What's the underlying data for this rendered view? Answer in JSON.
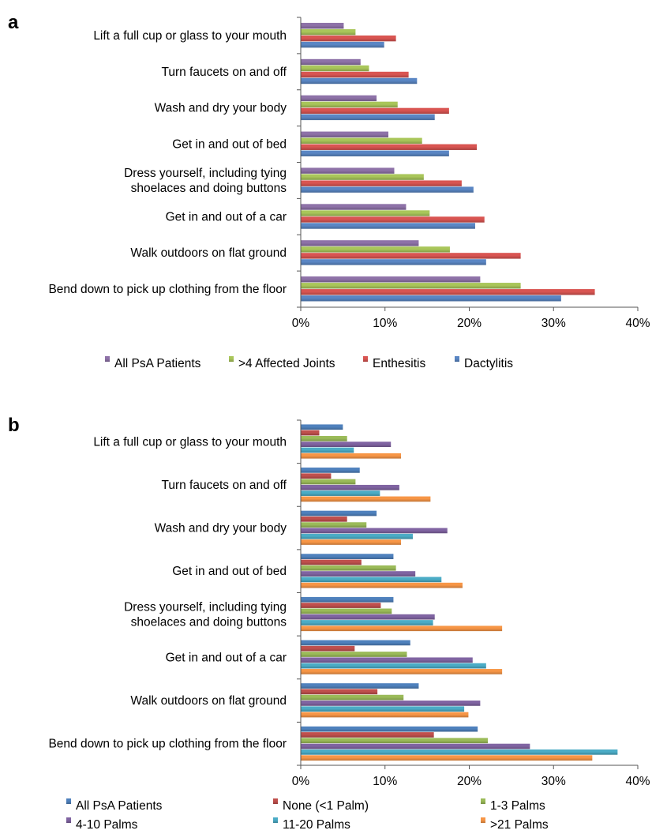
{
  "chart_data": [
    {
      "panel": "a",
      "type": "bar",
      "orientation": "horizontal",
      "categories": [
        "Lift a full cup or glass to your mouth",
        "Turn faucets on and off",
        "Wash and dry your body",
        "Get in and out of bed",
        "Dress yourself, including tying shoelaces and doing buttons",
        "Get in and out of a car",
        "Walk outdoors on flat ground",
        "Bend down to pick up clothing from the floor"
      ],
      "series": [
        {
          "name": "All PsA Patients",
          "color": "#8e72a8",
          "values": [
            5.1,
            7.1,
            9.0,
            10.4,
            11.1,
            12.5,
            14.0,
            21.3
          ]
        },
        {
          "name": ">4 Affected Joints",
          "color": "#a9c65a",
          "values": [
            6.5,
            8.1,
            11.5,
            14.4,
            14.6,
            15.3,
            17.7,
            26.1
          ]
        },
        {
          "name": "Enthesitis",
          "color": "#d95552",
          "values": [
            11.3,
            12.8,
            17.6,
            20.9,
            19.1,
            21.8,
            26.1,
            34.9
          ]
        },
        {
          "name": "Dactylitis",
          "color": "#5a86c4",
          "values": [
            9.9,
            13.8,
            15.9,
            17.6,
            20.5,
            20.7,
            22.0,
            30.9
          ]
        }
      ],
      "legend_order": [
        "All PsA Patients",
        ">4 Affected Joints",
        "Enthesitis",
        "Dactylitis"
      ],
      "xlim": [
        0,
        40
      ],
      "xticks": [
        "0%",
        "10%",
        "20%",
        "30%",
        "40%"
      ],
      "grid": false,
      "legend_position": "bottom"
    },
    {
      "panel": "b",
      "type": "bar",
      "orientation": "horizontal",
      "categories": [
        "Lift a full cup or glass to your mouth",
        "Turn faucets on and off",
        "Wash and dry your body",
        "Get in and out of bed",
        "Dress yourself, including tying shoelaces and doing buttons",
        "Get in and out of a car",
        "Walk outdoors on flat ground",
        "Bend down to pick up clothing from the floor"
      ],
      "series": [
        {
          "name": "All PsA Patients",
          "color": "#4f81bd",
          "values": [
            5.0,
            7.0,
            9.0,
            11.0,
            11.0,
            13.0,
            14.0,
            21.0
          ]
        },
        {
          "name": "None (<1 Palm)",
          "color": "#c0504d",
          "values": [
            2.2,
            3.6,
            5.5,
            7.2,
            9.5,
            6.4,
            9.1,
            15.8
          ]
        },
        {
          "name": "1-3 Palms",
          "color": "#9bbb59",
          "values": [
            5.5,
            6.5,
            7.8,
            11.3,
            10.8,
            12.6,
            12.2,
            22.2
          ]
        },
        {
          "name": "4-10 Palms",
          "color": "#8064a2",
          "values": [
            10.7,
            11.7,
            17.4,
            13.6,
            15.9,
            20.4,
            21.3,
            27.2
          ]
        },
        {
          "name": "11-20 Palms",
          "color": "#4bacc6",
          "values": [
            6.3,
            9.4,
            13.3,
            16.7,
            15.7,
            22.0,
            19.4,
            37.6
          ]
        },
        {
          "name": ">21 Palms",
          "color": "#f79646",
          "values": [
            11.9,
            15.4,
            11.9,
            19.2,
            23.9,
            23.9,
            19.9,
            34.6
          ]
        }
      ],
      "legend_order": [
        "All PsA Patients",
        "None (<1 Palm)",
        "1-3 Palms",
        "4-10 Palms",
        "11-20 Palms",
        ">21 Palms"
      ],
      "xlim": [
        0,
        40
      ],
      "xticks": [
        "0%",
        "10%",
        "20%",
        "30%",
        "40%"
      ],
      "grid": false,
      "legend_position": "bottom"
    }
  ]
}
